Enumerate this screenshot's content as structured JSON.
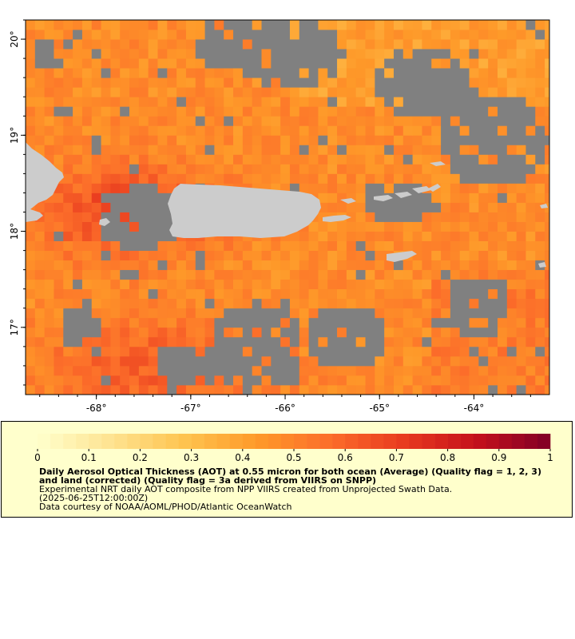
{
  "map": {
    "lon_range": [
      -68.75,
      -63.2
    ],
    "lat_range": [
      16.3,
      20.2
    ],
    "grid_step_deg": 0.1,
    "lon_ticks": [
      {
        "value": -68,
        "label": "-68°"
      },
      {
        "value": -67,
        "label": "-67°"
      },
      {
        "value": -66,
        "label": "-66°"
      },
      {
        "value": -65,
        "label": "-65°"
      },
      {
        "value": -64,
        "label": "-64°"
      }
    ],
    "lat_ticks": [
      {
        "value": 17,
        "label": "17°"
      },
      {
        "value": 18,
        "label": "18°"
      },
      {
        "value": 19,
        "label": "19°"
      },
      {
        "value": 20,
        "label": "20°"
      }
    ],
    "colors": {
      "missing_data": "#808080",
      "land": "#cccccc",
      "frame": "#000000"
    },
    "scale_min": 0,
    "scale_max": 1
  },
  "legend": {
    "background": "#ffffcc",
    "colorbar": {
      "ticks": [
        "0",
        "0.1",
        "0.2",
        "0.3",
        "0.4",
        "0.5",
        "0.6",
        "0.7",
        "0.8",
        "0.9",
        "1"
      ],
      "colors": [
        "#ffffcc",
        "#fee391",
        "#fec44f",
        "#fe9929",
        "#fc6d2a",
        "#e83a1f",
        "#c4101c",
        "#800026"
      ]
    },
    "title": "Daily Aerosol Optical Thickness (AOT) at 0.55 micron for both ocean (Average) (Quality flag = 1, 2, 3) and land (corrected) (Quality flag = 3a derived from VIIRS on SNPP)",
    "description": "Experimental NRT daily AOT composite from NPP VIIRS created from Unprojected Swath Data.",
    "time": "(2025-06-25T12:00:00Z)",
    "credit": "Data courtesy of NOAA/AOML/PHOD/Atlantic OceanWatch"
  }
}
